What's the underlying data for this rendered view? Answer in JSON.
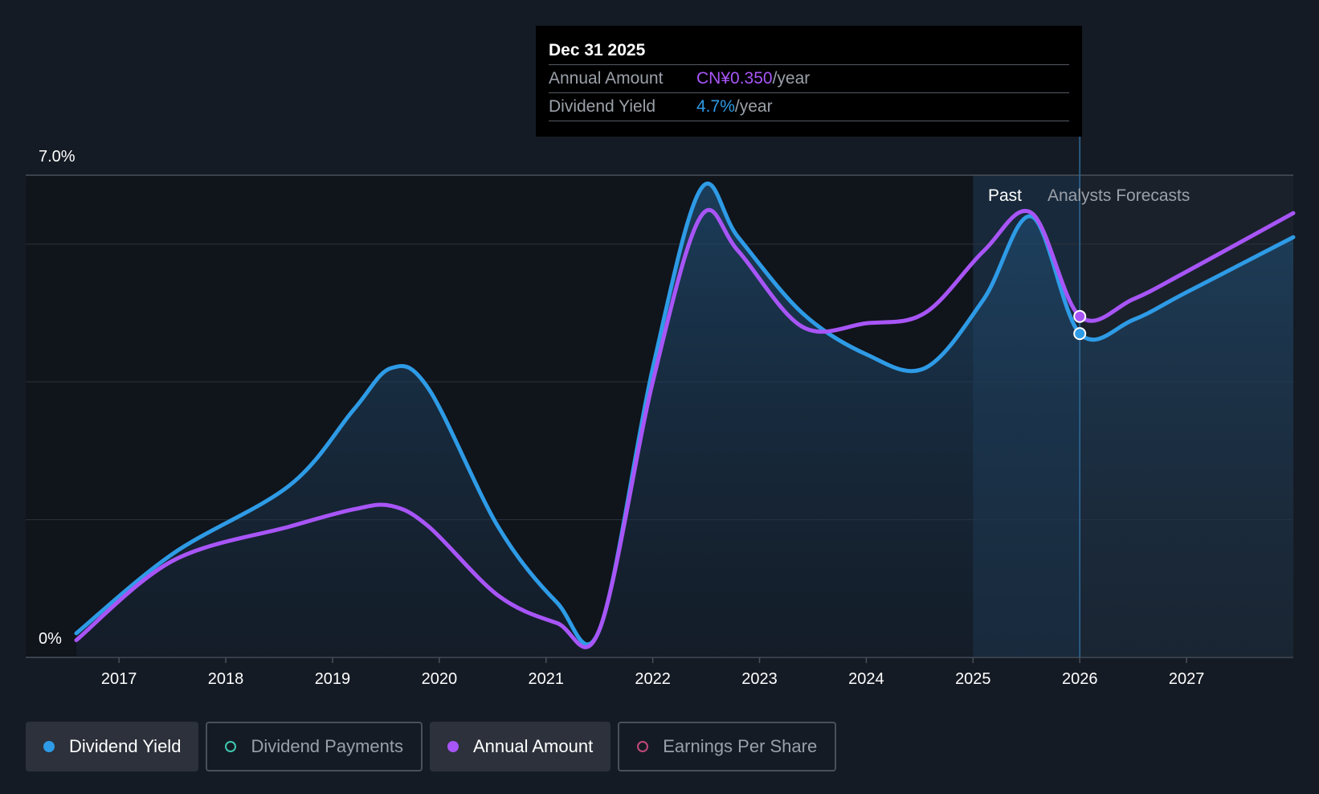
{
  "chart_data": {
    "type": "line",
    "y_axis_labels": [
      "7.0%",
      "0%"
    ],
    "ylim": [
      0,
      7.0
    ],
    "xlim": [
      2016.6,
      2028.0
    ],
    "x_ticks": [
      "2017",
      "2018",
      "2019",
      "2020",
      "2021",
      "2022",
      "2023",
      "2024",
      "2025",
      "2026",
      "2027"
    ],
    "x_tick_values": [
      2017,
      2018,
      2019,
      2020,
      2021,
      2022,
      2023,
      2024,
      2025,
      2026,
      2027
    ],
    "grid": true,
    "region_labels": {
      "past": "Past",
      "forecast": "Analysts Forecasts"
    },
    "forecast_start": 2026.0,
    "series": [
      {
        "name": "Dividend Yield",
        "color": "#2e9be6",
        "x": [
          2016.6,
          2017.5,
          2018.6,
          2019.2,
          2019.55,
          2019.9,
          2020.55,
          2021.1,
          2021.5,
          2022.0,
          2022.45,
          2022.8,
          2023.4,
          2024.0,
          2024.55,
          2025.1,
          2025.55,
          2026.0,
          2026.5,
          2027.0,
          2028.0
        ],
        "y": [
          0.35,
          1.5,
          2.5,
          3.6,
          4.2,
          3.9,
          1.9,
          0.8,
          0.4,
          4.2,
          6.8,
          6.1,
          5.0,
          4.4,
          4.2,
          5.2,
          6.4,
          4.7,
          4.9,
          5.3,
          6.1
        ]
      },
      {
        "name": "Annual Amount",
        "color": "#a855f7",
        "x": [
          2016.6,
          2017.5,
          2018.6,
          2019.2,
          2019.55,
          2019.9,
          2020.55,
          2021.1,
          2021.5,
          2022.0,
          2022.45,
          2022.8,
          2023.4,
          2024.0,
          2024.55,
          2025.1,
          2025.55,
          2026.0,
          2026.5,
          2027.0,
          2028.0
        ],
        "y": [
          0.25,
          1.4,
          1.9,
          2.15,
          2.2,
          1.9,
          0.9,
          0.5,
          0.4,
          4.0,
          6.4,
          5.9,
          4.8,
          4.85,
          5.0,
          5.9,
          6.45,
          4.95,
          5.2,
          5.6,
          6.45
        ]
      }
    ],
    "tooltip": {
      "date": "Dec 31 2025",
      "rows": [
        {
          "label": "Annual Amount",
          "value": "CN¥0.350",
          "unit": "/year"
        },
        {
          "label": "Dividend Yield",
          "value": "4.7%",
          "unit": "/year"
        }
      ]
    }
  },
  "legend": [
    {
      "label": "Dividend Yield",
      "active": true,
      "marker": "filled-blue"
    },
    {
      "label": "Dividend Payments",
      "active": false,
      "marker": "ring-teal"
    },
    {
      "label": "Annual Amount",
      "active": true,
      "marker": "filled-purple"
    },
    {
      "label": "Earnings Per Share",
      "active": false,
      "marker": "ring-pink"
    }
  ]
}
